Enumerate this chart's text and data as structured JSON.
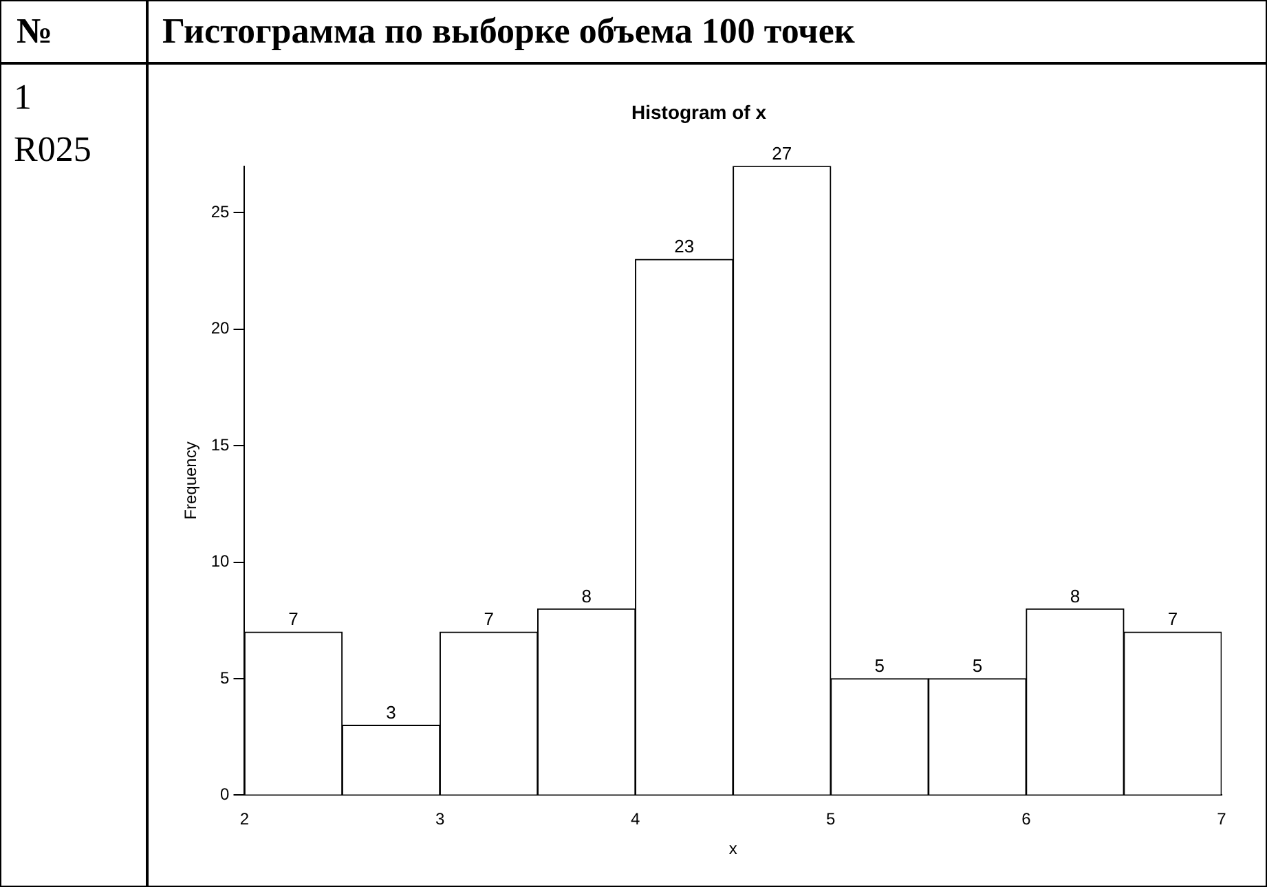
{
  "chart_data": {
    "type": "histogram",
    "title": "Histogram of x",
    "xlabel": "x",
    "ylabel": "Frequency",
    "annotations": [
      "№",
      "Гистограмма по выборке объема 100 точек",
      "1",
      "R025"
    ],
    "bins": [
      2,
      2.5,
      3,
      3.5,
      4,
      4.5,
      5,
      5.5,
      6,
      6.5,
      7
    ],
    "values": [
      7,
      3,
      7,
      8,
      23,
      27,
      5,
      5,
      8,
      7
    ],
    "color": "#ffffff",
    "xlim": [
      2,
      7
    ],
    "xticks": [
      2,
      3,
      4,
      5,
      6,
      7
    ],
    "ylim": [
      0,
      27
    ],
    "yticks": [
      0,
      5,
      10,
      15,
      20,
      25
    ],
    "grid": false,
    "legend": false,
    "data_labels": true
  }
}
